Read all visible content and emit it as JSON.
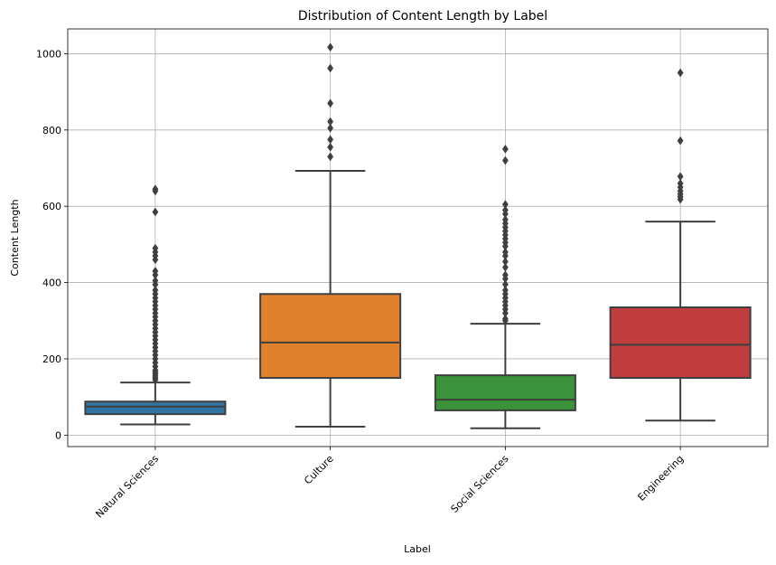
{
  "chart_data": {
    "type": "box",
    "title": "Distribution of Content Length by Label",
    "xlabel": "Label",
    "ylabel": "Content Length",
    "ylim": [
      -30,
      1065
    ],
    "yticks": [
      0,
      200,
      400,
      600,
      800,
      1000
    ],
    "grid": true,
    "categories": [
      "Natural Sciences",
      "Culture",
      "Social Sciences",
      "Engineering"
    ],
    "colors": [
      "#3274a1",
      "#e1812c",
      "#3a923a",
      "#c03d3e"
    ],
    "boxes": [
      {
        "label": "Natural Sciences",
        "whisker_low": 28,
        "q1": 55,
        "median": 75,
        "q3": 88,
        "whisker_high": 138,
        "outliers": [
          145,
          150,
          155,
          160,
          165,
          170,
          180,
          190,
          200,
          210,
          220,
          230,
          240,
          250,
          260,
          270,
          280,
          290,
          300,
          310,
          320,
          330,
          340,
          350,
          360,
          370,
          380,
          395,
          405,
          420,
          430,
          460,
          470,
          480,
          490,
          585,
          640,
          645
        ]
      },
      {
        "label": "Culture",
        "whisker_low": 22,
        "q1": 150,
        "median": 243,
        "q3": 370,
        "whisker_high": 693,
        "outliers": [
          730,
          755,
          775,
          805,
          822,
          870,
          962,
          1017
        ]
      },
      {
        "label": "Social Sciences",
        "whisker_low": 18,
        "q1": 65,
        "median": 93,
        "q3": 157,
        "whisker_high": 292,
        "outliers": [
          300,
          305,
          320,
          330,
          340,
          350,
          360,
          370,
          380,
          395,
          410,
          420,
          440,
          455,
          470,
          480,
          495,
          505,
          515,
          525,
          535,
          545,
          555,
          565,
          580,
          590,
          605,
          720,
          750
        ]
      },
      {
        "label": "Engineering",
        "whisker_low": 38,
        "q1": 150,
        "median": 237,
        "q3": 335,
        "whisker_high": 560,
        "outliers": [
          618,
          625,
          632,
          640,
          650,
          660,
          678,
          772,
          950
        ]
      }
    ]
  }
}
